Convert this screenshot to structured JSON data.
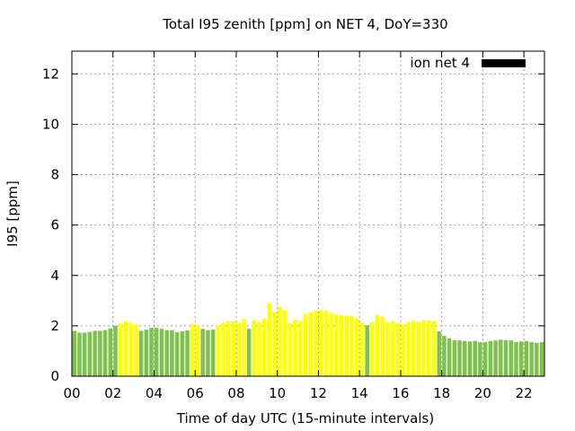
{
  "chart_data": {
    "type": "bar",
    "title": "Total I95 zenith [ppm] on NET 4, DoY=330",
    "xlabel": "Time of day UTC (15-minute intervals)",
    "ylabel": "I95 [ppm]",
    "xlim": [
      0,
      23
    ],
    "ylim": [
      0,
      12.9
    ],
    "xticks": [
      0,
      2,
      4,
      6,
      8,
      10,
      12,
      14,
      16,
      18,
      20,
      22
    ],
    "xtick_labels": [
      "00",
      "02",
      "04",
      "06",
      "08",
      "10",
      "12",
      "14",
      "16",
      "18",
      "20",
      "22"
    ],
    "yticks": [
      0,
      2,
      4,
      6,
      8,
      10,
      12
    ],
    "ytick_labels": [
      "0",
      "2",
      "4",
      "6",
      "8",
      "10",
      "12"
    ],
    "interval_hours": 0.25,
    "grid": true,
    "legend": {
      "position": "top-right",
      "entries": [
        {
          "name": "ion net 4",
          "color": "#000000"
        }
      ]
    },
    "colors": {
      "green": "#7dc24b",
      "yellow": "#ffff00"
    },
    "values": [
      1.8,
      1.73,
      1.73,
      1.76,
      1.8,
      1.8,
      1.83,
      1.9,
      2.0,
      2.08,
      2.18,
      2.12,
      2.05,
      1.8,
      1.85,
      1.92,
      1.92,
      1.88,
      1.83,
      1.83,
      1.75,
      1.78,
      1.82,
      2.07,
      2.02,
      1.88,
      1.83,
      1.85,
      2.02,
      2.12,
      2.18,
      2.18,
      2.12,
      2.28,
      1.88,
      2.22,
      2.15,
      2.28,
      2.9,
      2.55,
      2.75,
      2.62,
      2.1,
      2.25,
      2.2,
      2.48,
      2.55,
      2.6,
      2.62,
      2.6,
      2.5,
      2.45,
      2.42,
      2.4,
      2.4,
      2.3,
      2.12,
      2.02,
      2.15,
      2.42,
      2.35,
      2.15,
      2.18,
      2.1,
      2.05,
      2.15,
      2.2,
      2.15,
      2.22,
      2.22,
      2.2,
      1.78,
      1.6,
      1.5,
      1.43,
      1.42,
      1.4,
      1.38,
      1.4,
      1.35,
      1.35,
      1.4,
      1.42,
      1.45,
      1.43,
      1.42,
      1.35,
      1.38,
      1.4,
      1.35,
      1.32,
      1.35
    ],
    "bar_colors": [
      "green",
      "green",
      "green",
      "green",
      "green",
      "green",
      "green",
      "green",
      "green",
      "yellow",
      "yellow",
      "yellow",
      "yellow",
      "green",
      "green",
      "green",
      "green",
      "green",
      "green",
      "green",
      "green",
      "green",
      "green",
      "yellow",
      "yellow",
      "green",
      "green",
      "green",
      "yellow",
      "yellow",
      "yellow",
      "yellow",
      "yellow",
      "yellow",
      "green",
      "yellow",
      "yellow",
      "yellow",
      "yellow",
      "yellow",
      "yellow",
      "yellow",
      "yellow",
      "yellow",
      "yellow",
      "yellow",
      "yellow",
      "yellow",
      "yellow",
      "yellow",
      "yellow",
      "yellow",
      "yellow",
      "yellow",
      "yellow",
      "yellow",
      "yellow",
      "green",
      "yellow",
      "yellow",
      "yellow",
      "yellow",
      "yellow",
      "yellow",
      "yellow",
      "yellow",
      "yellow",
      "yellow",
      "yellow",
      "yellow",
      "yellow",
      "green",
      "green",
      "green",
      "green",
      "green",
      "green",
      "green",
      "green",
      "green",
      "green",
      "green",
      "green",
      "green",
      "green",
      "green",
      "green",
      "green",
      "green",
      "green",
      "green",
      "green"
    ]
  }
}
